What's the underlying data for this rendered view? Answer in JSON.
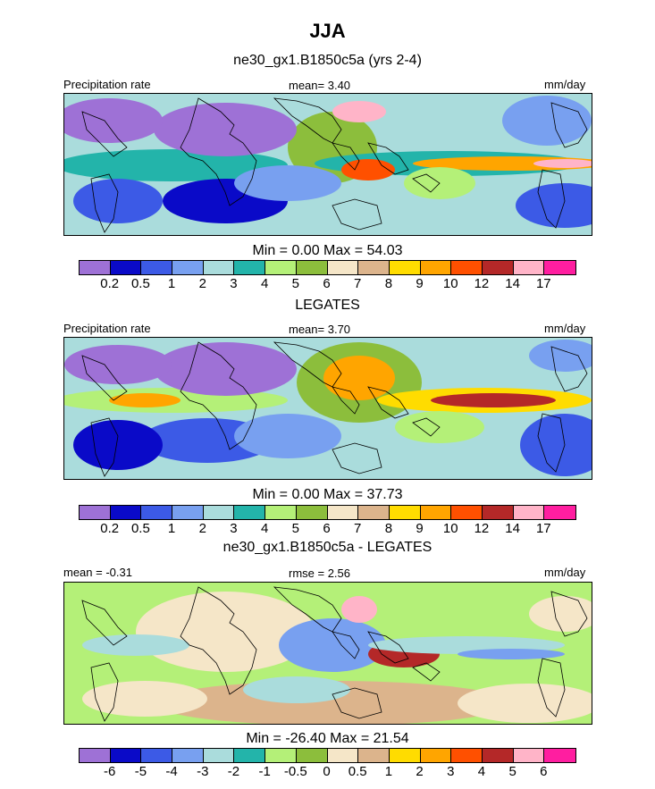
{
  "page": {
    "season": "JJA",
    "subtitle1": "ne30_gx1.B1850c5a (yrs 2-4)",
    "subtitle2": "LEGATES",
    "subtitle3": "ne30_gx1.B1850c5a - LEGATES"
  },
  "panels": [
    {
      "left_label": "Precipitation rate",
      "center_label": "mean=   3.40",
      "right_label": "mm/day",
      "minmax": "Min =   0.00 Max =  54.03"
    },
    {
      "left_label": "Precipitation rate",
      "center_label": "mean=   3.70",
      "right_label": "mm/day",
      "minmax": "Min =   0.00 Max =  37.73"
    },
    {
      "left_label": "mean =  -0.31",
      "center_label": "rmse =    2.56",
      "right_label": "mm/day",
      "minmax": "Min = -26.40 Max =  21.54"
    }
  ],
  "chart_data": [
    {
      "type": "heatmap",
      "title": "ne30_gx1.B1850c5a (yrs 2-4)",
      "variable": "Precipitation rate",
      "units": "mm/day",
      "mean": 3.4,
      "min": 0.0,
      "max": 54.03,
      "colorbar_levels": [
        "0.2",
        "0.5",
        "1",
        "2",
        "3",
        "4",
        "5",
        "6",
        "7",
        "8",
        "9",
        "10",
        "12",
        "14",
        "17"
      ],
      "colors": [
        "#9e71d6",
        "#0a0ac8",
        "#3c5ae6",
        "#78a0f0",
        "#aadcdc",
        "#23b4aa",
        "#b4f078",
        "#8cbe3c",
        "#f5e6c8",
        "#dcb48c",
        "#ffdc00",
        "#ffa500",
        "#ff5000",
        "#b42828",
        "#ffb4c8",
        "#ff1ea0"
      ]
    },
    {
      "type": "heatmap",
      "title": "LEGATES",
      "variable": "Precipitation rate",
      "units": "mm/day",
      "mean": 3.7,
      "min": 0.0,
      "max": 37.73,
      "colorbar_levels": [
        "0.2",
        "0.5",
        "1",
        "2",
        "3",
        "4",
        "5",
        "6",
        "7",
        "8",
        "9",
        "10",
        "12",
        "14",
        "17"
      ],
      "colors": [
        "#9e71d6",
        "#0a0ac8",
        "#3c5ae6",
        "#78a0f0",
        "#aadcdc",
        "#23b4aa",
        "#b4f078",
        "#8cbe3c",
        "#f5e6c8",
        "#dcb48c",
        "#ffdc00",
        "#ffa500",
        "#ff5000",
        "#b42828",
        "#ffb4c8",
        "#ff1ea0"
      ]
    },
    {
      "type": "heatmap",
      "title": "ne30_gx1.B1850c5a - LEGATES",
      "units": "mm/day",
      "mean": -0.31,
      "rmse": 2.56,
      "min": -26.4,
      "max": 21.54,
      "colorbar_levels": [
        "-6",
        "-5",
        "-4",
        "-3",
        "-2",
        "-1",
        "-0.5",
        "0",
        "0.5",
        "1",
        "2",
        "3",
        "4",
        "5",
        "6"
      ],
      "colors": [
        "#9e71d6",
        "#0a0ac8",
        "#3c5ae6",
        "#78a0f0",
        "#aadcdc",
        "#23b4aa",
        "#b4f078",
        "#8cbe3c",
        "#f5e6c8",
        "#dcb48c",
        "#ffdc00",
        "#ffa500",
        "#ff5000",
        "#b42828",
        "#ffb4c8",
        "#ff1ea0"
      ]
    }
  ]
}
